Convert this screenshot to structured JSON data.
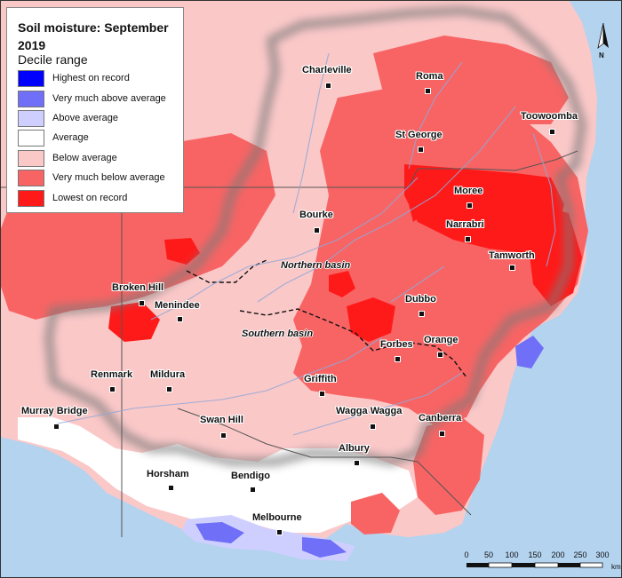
{
  "legend": {
    "title": "Soil moisture: September 2019",
    "subtitle": "Decile range",
    "items": [
      {
        "label": "Highest on record",
        "color": "#0000ff"
      },
      {
        "label": "Very much above average",
        "color": "#6f6ff7"
      },
      {
        "label": "Above average",
        "color": "#cfcfff"
      },
      {
        "label": "Average",
        "color": "#ffffff"
      },
      {
        "label": "Below average",
        "color": "#fbc8c8"
      },
      {
        "label": "Very much below average",
        "color": "#f86464"
      },
      {
        "label": "Lowest on record",
        "color": "#ff1a1a"
      }
    ]
  },
  "towns": [
    {
      "name": "Charleville"
    },
    {
      "name": "Roma"
    },
    {
      "name": "Toowoomba"
    },
    {
      "name": "St George"
    },
    {
      "name": "Moree"
    },
    {
      "name": "Narrabri"
    },
    {
      "name": "Bourke"
    },
    {
      "name": "Tamworth"
    },
    {
      "name": "Broken Hill"
    },
    {
      "name": "Menindee"
    },
    {
      "name": "Dubbo"
    },
    {
      "name": "Forbes"
    },
    {
      "name": "Orange"
    },
    {
      "name": "Renmark"
    },
    {
      "name": "Mildura"
    },
    {
      "name": "Griffith"
    },
    {
      "name": "Murray Bridge"
    },
    {
      "name": "Swan Hill"
    },
    {
      "name": "Wagga Wagga"
    },
    {
      "name": "Canberra"
    },
    {
      "name": "Albury"
    },
    {
      "name": "Horsham"
    },
    {
      "name": "Bendigo"
    },
    {
      "name": "Melbourne"
    }
  ],
  "basins": [
    {
      "name": "Northern basin"
    },
    {
      "name": "Southern basin"
    }
  ],
  "north_arrow": {
    "label": "N"
  },
  "scale": {
    "ticks": [
      "0",
      "50",
      "100",
      "150",
      "200",
      "250",
      "300"
    ],
    "unit": "km"
  },
  "colors": {
    "sea": "#b3d3ef",
    "basin_shadow": "#7a7a7a",
    "river": "#8fa8d8"
  }
}
